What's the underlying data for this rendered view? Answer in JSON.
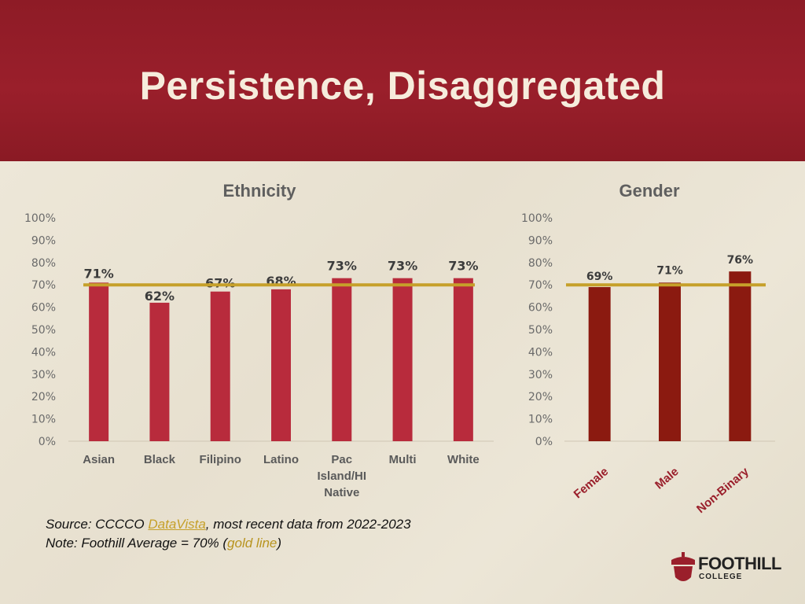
{
  "slide": {
    "title": "Persistence, Disaggregated"
  },
  "colors": {
    "header": "#9a1f2b",
    "ethnicity_bar": "#b82b3c",
    "gender_bar": "#8b1a10",
    "average_line": "#c6a02a"
  },
  "chart_data": [
    {
      "type": "bar",
      "title": "Ethnicity",
      "categories": [
        "Asian",
        "Black",
        "Filipino",
        "Latino",
        "Pac Island/HI Native",
        "Multi",
        "White"
      ],
      "category_lines": [
        [
          "Asian"
        ],
        [
          "Black"
        ],
        [
          "Filipino"
        ],
        [
          "Latino"
        ],
        [
          "Pac",
          "Island/HI",
          "Native"
        ],
        [
          "Multi"
        ],
        [
          "White"
        ]
      ],
      "values": [
        71,
        62,
        67,
        68,
        73,
        73,
        73
      ],
      "data_labels": [
        "71%",
        "62%",
        "67%",
        "68%",
        "73%",
        "73%",
        "73%"
      ],
      "ylim": [
        0,
        100
      ],
      "yticks": [
        "0%",
        "10%",
        "20%",
        "30%",
        "40%",
        "50%",
        "60%",
        "70%",
        "80%",
        "90%",
        "100%"
      ],
      "reference_line": 70,
      "xlabel": "",
      "ylabel": ""
    },
    {
      "type": "bar",
      "title": "Gender",
      "categories": [
        "Female",
        "Male",
        "Non-Binary"
      ],
      "values": [
        69,
        71,
        76
      ],
      "data_labels": [
        "69%",
        "71%",
        "76%"
      ],
      "ylim": [
        0,
        100
      ],
      "yticks": [
        "0%",
        "10%",
        "20%",
        "30%",
        "40%",
        "50%",
        "60%",
        "70%",
        "80%",
        "90%",
        "100%"
      ],
      "reference_line": 70,
      "xlabel": "",
      "ylabel": ""
    }
  ],
  "notes": {
    "source_prefix": "Source: CCCCO ",
    "source_link": "DataVista",
    "source_suffix": ", most recent data from 2022-2023",
    "note_prefix": "Note: Foothill Average = 70% (",
    "note_highlight": "gold line",
    "note_suffix": ")"
  },
  "logo": {
    "name": "FOOTHILL",
    "sub": "COLLEGE"
  }
}
